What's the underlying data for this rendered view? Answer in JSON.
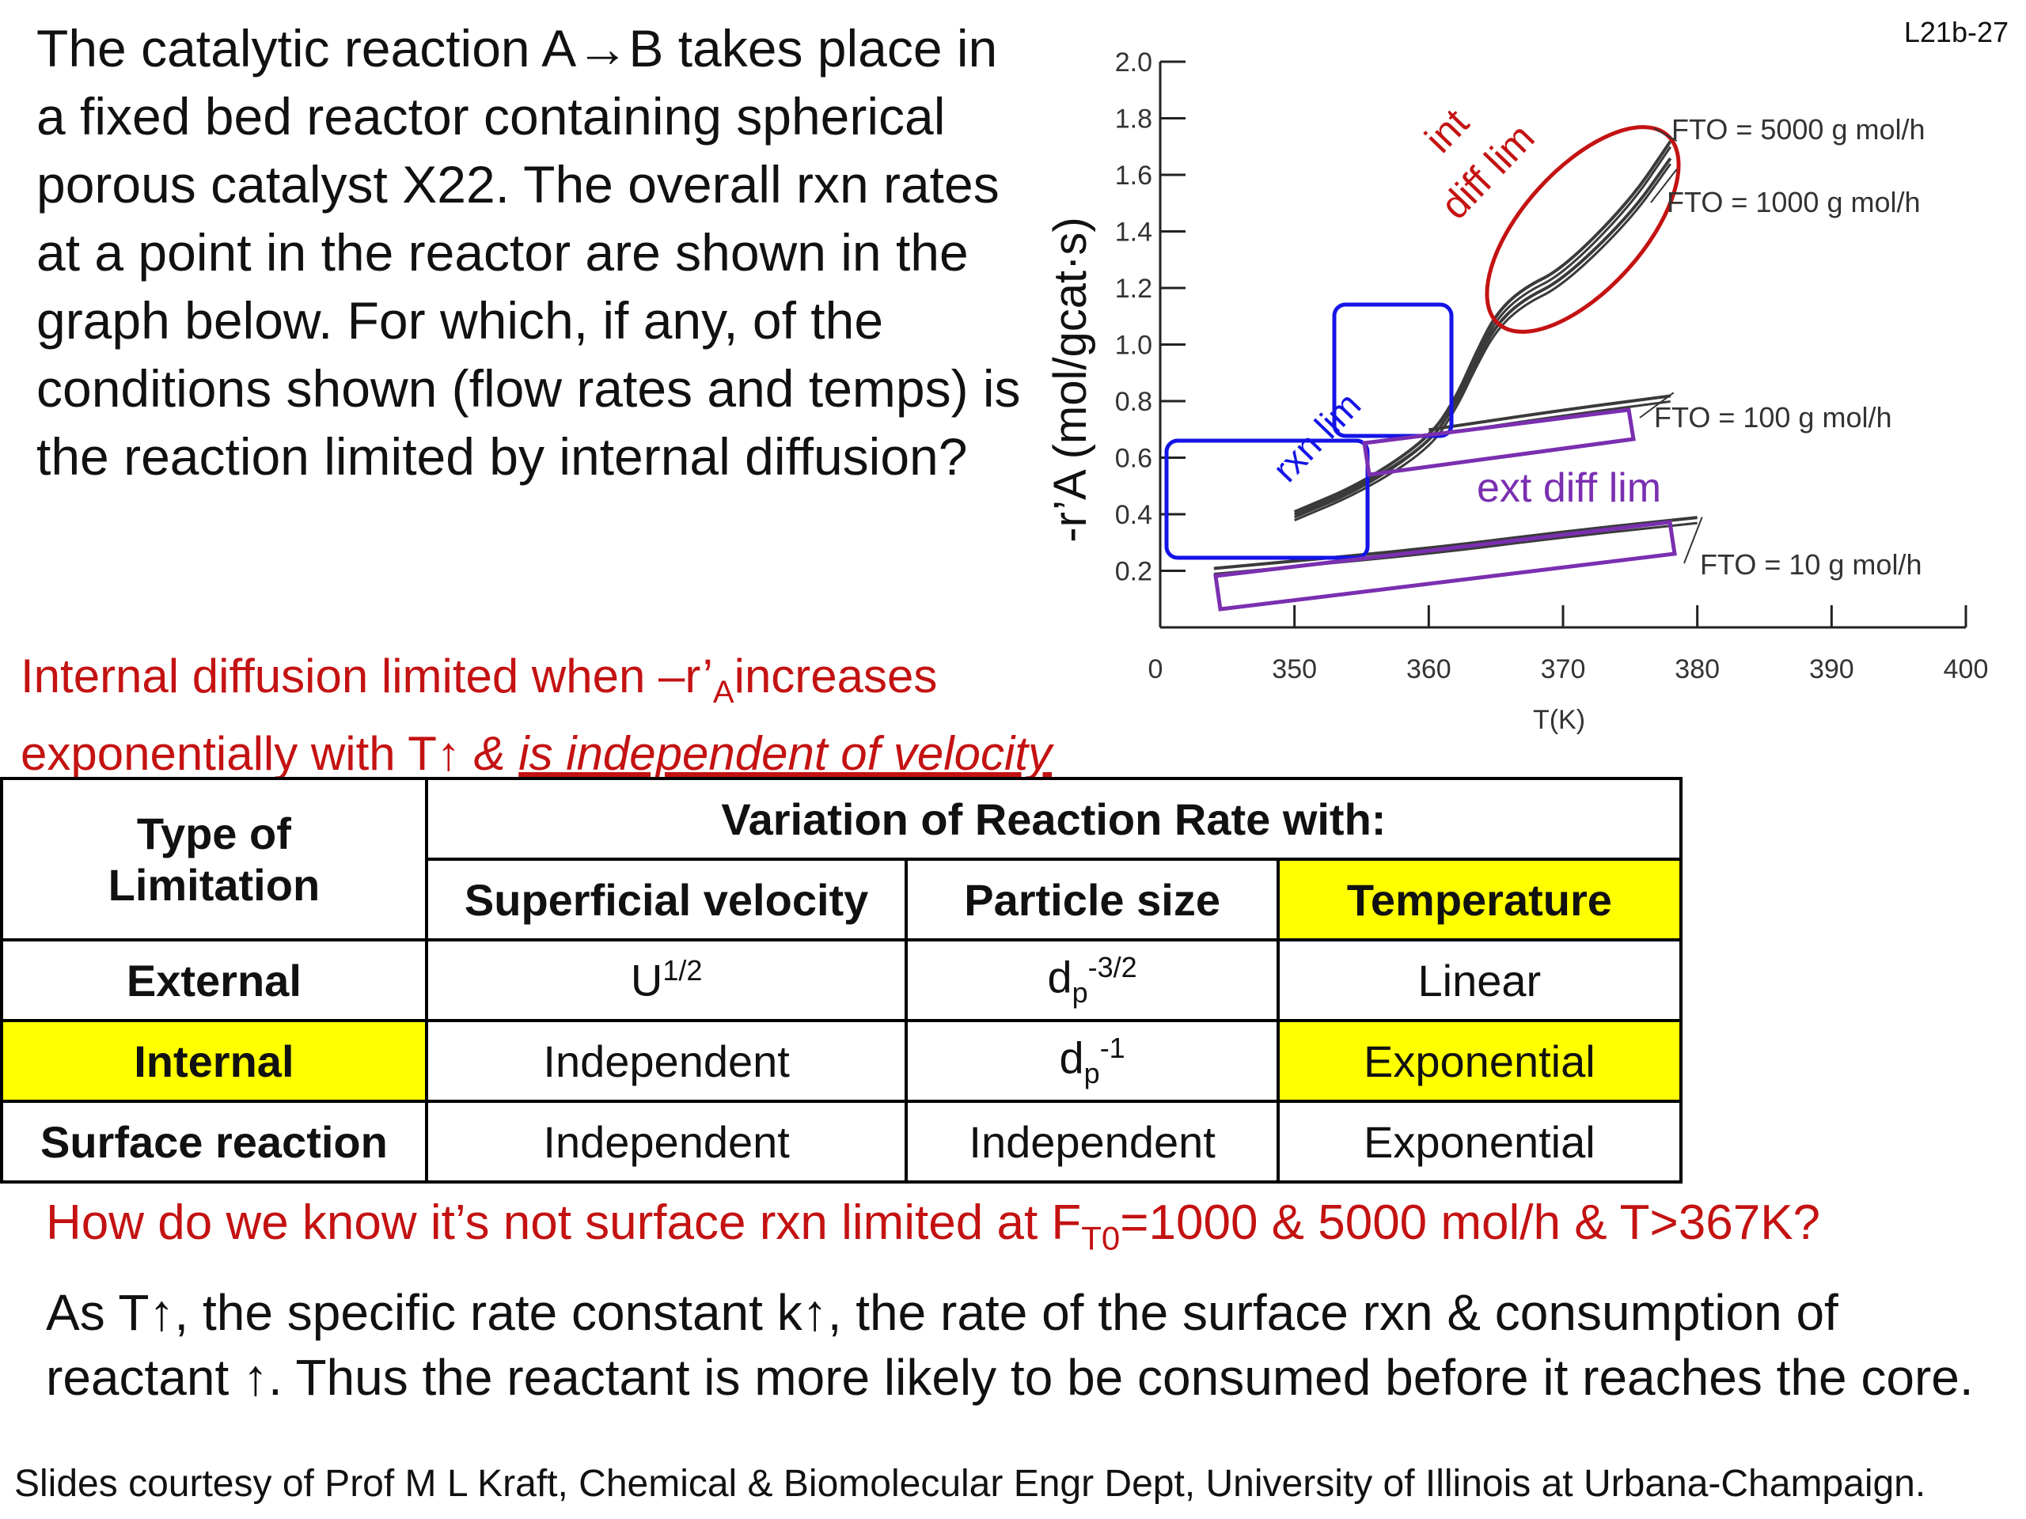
{
  "slide_id": "L21b-27",
  "question": "The catalytic reaction A→B takes place in a fixed bed reactor containing spherical porous catalyst X22.  The overall rxn rates at a point in the reactor are shown in the graph below. For which, if any, of the conditions shown (flow rates and temps) is the reaction limited by internal diffusion?",
  "answer": {
    "line1_pre": "Internal diffusion limited when  –r’",
    "line1_sub": "A",
    "line1_post": "increases",
    "line2_pre": "exponentially with T↑ ",
    "line2_amp": "& ",
    "line2_underlined": "is independent of velocity"
  },
  "colors": {
    "red_text": "#c41212",
    "ellipse": "#c41212",
    "rxn_box": "#1414e6",
    "ext_box": "#7a2fb0",
    "highlight": "#ffff00",
    "curve": "#3a3a3a"
  },
  "chart_data": {
    "type": "line",
    "xlabel": "T(K)",
    "ylabel": "-r’A (mol/gcat·s)",
    "xlim": [
      340,
      400
    ],
    "ylim": [
      0,
      2.0
    ],
    "x_ticks": [
      "350",
      "360",
      "370",
      "380",
      "390",
      "400"
    ],
    "x_origin_label": "0",
    "y_ticks": [
      "0.2",
      "0.4",
      "0.6",
      "0.8",
      "1.0",
      "1.2",
      "1.4",
      "1.6",
      "1.8",
      "2.0"
    ],
    "series": [
      {
        "name": "FTO = 5000 g mol/h",
        "x": [
          350,
          355,
          360,
          362,
          363.5,
          365,
          367,
          370,
          375,
          378
        ],
        "y": [
          0.4,
          0.5,
          0.66,
          0.8,
          0.96,
          1.1,
          1.19,
          1.26,
          1.5,
          1.71
        ]
      },
      {
        "name": "FTO = 1000 g mol/h",
        "x": [
          350,
          355,
          360,
          362,
          363.5,
          365,
          367,
          370,
          375,
          378
        ],
        "y": [
          0.39,
          0.49,
          0.64,
          0.78,
          0.93,
          1.06,
          1.15,
          1.22,
          1.45,
          1.65
        ]
      },
      {
        "name": "FTO = 100 g mol/h",
        "x": [
          360,
          370,
          378
        ],
        "y": [
          0.69,
          0.76,
          0.81
        ]
      },
      {
        "name": "FTO = 10 g mol/h",
        "x": [
          344,
          360,
          370,
          380
        ],
        "y": [
          0.2,
          0.27,
          0.33,
          0.38
        ]
      }
    ],
    "annotations": {
      "int_diff": [
        "int",
        "diff lim"
      ],
      "rxn_lim": "rxn lim",
      "ext_diff": "ext diff lim"
    }
  },
  "table": {
    "corner": [
      "Type of",
      "Limitation"
    ],
    "group_header": "Variation of Reaction Rate with:",
    "columns": [
      "Superficial velocity",
      "Particle size",
      "Temperature"
    ],
    "rows": [
      {
        "type": "External",
        "velocity": "U",
        "velocity_sup": "1/2",
        "size": "d",
        "size_sub": "p",
        "size_sup": "-3/2",
        "temperature": "Linear"
      },
      {
        "type": "Internal",
        "velocity": "Independent",
        "size": "d",
        "size_sub": "p",
        "size_sup": "-1",
        "temperature": "Exponential"
      },
      {
        "type": "Surface reaction",
        "velocity": "Independent",
        "size": "Independent",
        "temperature": "Exponential"
      }
    ]
  },
  "question2": {
    "pre": "How do we know it’s not surface rxn limited at F",
    "sub": "T0",
    "post": "=1000 & 5000 mol/h & T>367K?"
  },
  "explanation": "As T↑, the specific rate constant k↑, the rate of the surface rxn & consumption of reactant ↑.  Thus the reactant is more likely to be consumed before it reaches the core.",
  "credit": "Slides courtesy of Prof M L Kraft, Chemical & Biomolecular Engr Dept, University of Illinois at Urbana-Champaign."
}
